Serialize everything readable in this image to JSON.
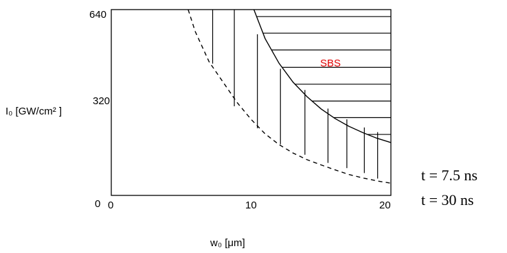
{
  "chart_data": {
    "type": "line",
    "title": "",
    "xlabel": "w₀ [μm]",
    "ylabel": "I₀ [GW/cm² ]",
    "xlim": [
      0,
      20
    ],
    "ylim": [
      0,
      640
    ],
    "x_ticks": [
      "0",
      "10",
      "20"
    ],
    "y_ticks": [
      "0",
      "320",
      "640"
    ],
    "grid": false,
    "region_label": "SBS",
    "region_color": "#e00000",
    "series": [
      {
        "name": "t = 7.5 ns",
        "style": "solid",
        "points": [
          [
            10.2,
            640
          ],
          [
            11,
            540
          ],
          [
            12,
            455
          ],
          [
            13,
            390
          ],
          [
            14,
            340
          ],
          [
            15,
            298
          ],
          [
            16,
            265
          ],
          [
            17,
            238
          ],
          [
            18,
            216
          ],
          [
            19,
            197
          ],
          [
            20,
            182
          ]
        ]
      },
      {
        "name": "t = 30 ns",
        "style": "dashed",
        "points": [
          [
            5.5,
            640
          ],
          [
            6,
            565
          ],
          [
            7,
            460
          ],
          [
            8,
            390
          ],
          [
            9,
            320
          ],
          [
            10,
            262
          ],
          [
            11,
            212
          ],
          [
            12,
            175
          ],
          [
            13,
            146
          ],
          [
            14,
            123
          ],
          [
            15,
            105
          ],
          [
            16,
            88
          ],
          [
            17,
            72
          ],
          [
            18,
            60
          ],
          [
            19,
            50
          ],
          [
            20,
            42
          ]
        ]
      }
    ],
    "hatch": {
      "vertical_lines": [
        [
          7.25,
          640,
          454
        ],
        [
          8.8,
          640,
          307
        ],
        [
          10.45,
          555,
          231
        ],
        [
          12.1,
          436,
          176
        ],
        [
          13.85,
          363,
          140
        ],
        [
          15.5,
          299,
          112
        ],
        [
          16.85,
          262,
          94
        ],
        [
          18.1,
          234,
          77
        ],
        [
          19.05,
          218,
          58
        ]
      ],
      "horizontal_levels": [
        616,
        559,
        501,
        441,
        383,
        325,
        268,
        210
      ]
    },
    "legend": [
      "t = 7.5 ns",
      "t = 30 ns"
    ]
  }
}
